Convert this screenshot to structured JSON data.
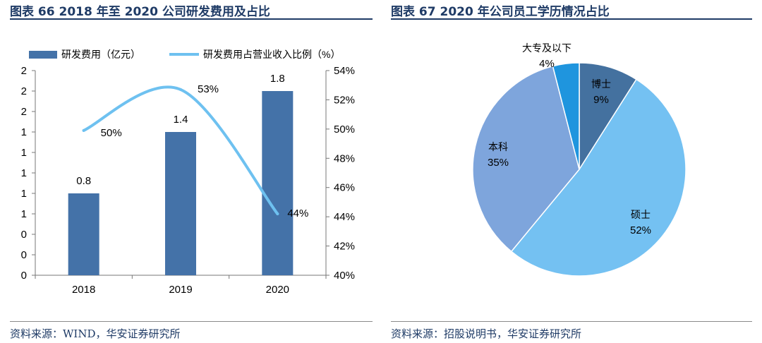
{
  "left_panel": {
    "title": "图表 66 2018 年至 2020 公司研发费用及占比",
    "source": "资料来源：WIND，华安证券研究所"
  },
  "right_panel": {
    "title": "图表 67 2020 年公司员工学历情况占比",
    "source": "资料来源：招股说明书，华安证券研究所"
  },
  "chart_data": [
    {
      "type": "bar",
      "title": "2018 年至 2020 公司研发费用及占比",
      "categories": [
        "2018",
        "2019",
        "2020"
      ],
      "series": [
        {
          "name": "研发费用（亿元）",
          "type": "bar",
          "axis": "left",
          "values": [
            0.8,
            1.4,
            1.8
          ],
          "labels": [
            "0.8",
            "1.4",
            "1.8"
          ],
          "color": "#4472a8"
        },
        {
          "name": "研发费用占营业收入比例（%）",
          "type": "line",
          "axis": "right",
          "values": [
            49.9,
            52.7,
            44.2
          ],
          "labels": [
            "50%",
            "53%",
            "44%"
          ],
          "color": "#6ec1f0"
        }
      ],
      "left_axis": {
        "ticks": [
          "0",
          "0",
          "0",
          "1",
          "1",
          "1",
          "1",
          "1",
          "2",
          "2",
          "2"
        ],
        "ylim": [
          0,
          2
        ]
      },
      "right_axis": {
        "ticks": [
          "40%",
          "42%",
          "44%",
          "46%",
          "48%",
          "50%",
          "52%",
          "54%"
        ],
        "ylim": [
          40,
          54
        ]
      },
      "legend": "top"
    },
    {
      "type": "pie",
      "title": "2020 年公司员工学历情况占比",
      "slices": [
        {
          "name": "博士",
          "value": 9,
          "label": "9%",
          "color": "#44719f"
        },
        {
          "name": "硕士",
          "value": 52,
          "label": "52%",
          "color": "#74c1f2"
        },
        {
          "name": "本科",
          "value": 35,
          "label": "35%",
          "color": "#7ea5dc"
        },
        {
          "name": "大专及以下",
          "value": 4,
          "label": "4%",
          "color": "#1f95de"
        }
      ]
    }
  ]
}
